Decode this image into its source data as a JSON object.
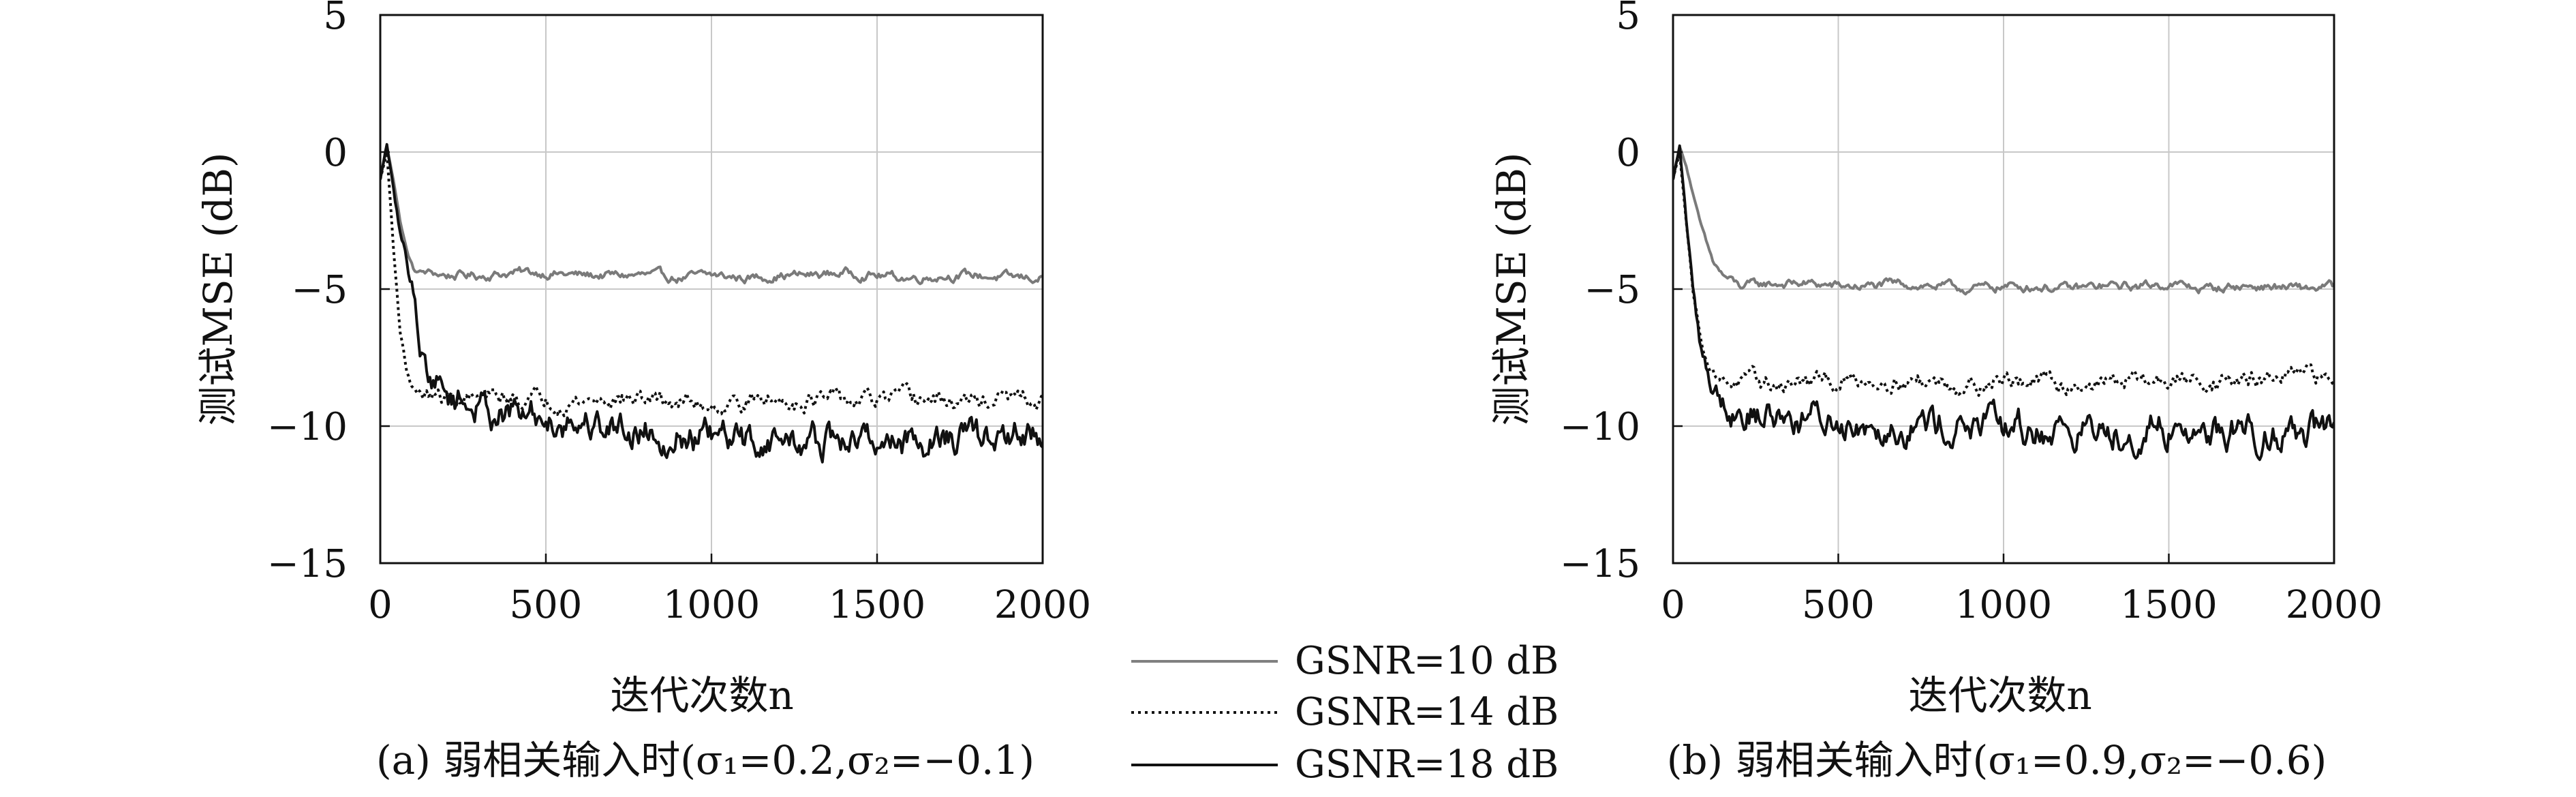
{
  "chart_data": [
    {
      "type": "line",
      "caption": "(a) 弱相关输入时(σ₁=0.2,σ₂=−0.1)",
      "xlabel": "迭代次数n",
      "ylabel": "测试MSE (dB)",
      "xlim": [
        0,
        2000
      ],
      "ylim": [
        -15,
        5
      ],
      "xticks": [
        "0",
        "500",
        "1000",
        "1500",
        "2000"
      ],
      "yticks": [
        "5",
        "0",
        "−5",
        "−10",
        "−15"
      ],
      "grid": true,
      "series": [
        {
          "name": "GSNR=10 dB",
          "style": "solid-gray",
          "x": [
            0,
            20,
            40,
            60,
            80,
            100,
            120,
            150,
            200,
            300,
            400,
            500,
            600,
            700,
            800,
            900,
            1000,
            1100,
            1200,
            1300,
            1400,
            1500,
            1600,
            1700,
            1800,
            1900,
            2000
          ],
          "y": [
            -1.0,
            0.2,
            -1.0,
            -2.5,
            -3.6,
            -4.3,
            -4.4,
            -4.4,
            -4.5,
            -4.5,
            -4.4,
            -4.4,
            -4.5,
            -4.5,
            -4.5,
            -4.6,
            -4.5,
            -4.6,
            -4.5,
            -4.5,
            -4.4,
            -4.5,
            -4.6,
            -4.5,
            -4.5,
            -4.6,
            -4.6
          ]
        },
        {
          "name": "GSNR=14 dB",
          "style": "dotted-black",
          "x": [
            0,
            20,
            40,
            60,
            80,
            100,
            120,
            150,
            200,
            300,
            400,
            500,
            600,
            700,
            800,
            900,
            1000,
            1100,
            1200,
            1300,
            1400,
            1500,
            1600,
            1700,
            1800,
            1900,
            2000
          ],
          "y": [
            -1.0,
            0.0,
            -3.5,
            -6.5,
            -8.0,
            -8.6,
            -8.8,
            -8.9,
            -9.0,
            -9.0,
            -9.0,
            -9.0,
            -9.1,
            -9.0,
            -9.0,
            -9.1,
            -9.2,
            -9.1,
            -9.1,
            -9.0,
            -9.1,
            -9.1,
            -9.0,
            -9.1,
            -9.1,
            -9.0,
            -9.2
          ]
        },
        {
          "name": "GSNR=18 dB",
          "style": "solid-black",
          "x": [
            0,
            20,
            40,
            60,
            80,
            100,
            120,
            150,
            200,
            300,
            400,
            500,
            600,
            700,
            800,
            900,
            1000,
            1100,
            1200,
            1300,
            1400,
            1500,
            1600,
            1700,
            1800,
            1900,
            2000
          ],
          "y": [
            -1.0,
            0.3,
            -1.5,
            -3.0,
            -4.0,
            -5.0,
            -7.0,
            -8.2,
            -8.8,
            -9.3,
            -9.6,
            -9.7,
            -9.8,
            -10.0,
            -10.1,
            -10.3,
            -10.5,
            -10.6,
            -10.5,
            -10.6,
            -10.6,
            -10.5,
            -10.5,
            -10.4,
            -10.5,
            -10.4,
            -10.4
          ]
        }
      ]
    },
    {
      "type": "line",
      "caption": "(b) 弱相关输入时(σ₁=0.9,σ₂=−0.6)",
      "xlabel": "迭代次数n",
      "ylabel": "测试MSE (dB)",
      "xlim": [
        0,
        2000
      ],
      "ylim": [
        -15,
        5
      ],
      "xticks": [
        "0",
        "500",
        "1000",
        "1500",
        "2000"
      ],
      "yticks": [
        "5",
        "0",
        "−5",
        "−10",
        "−15"
      ],
      "grid": true,
      "series": [
        {
          "name": "GSNR=10 dB",
          "style": "solid-gray",
          "x": [
            0,
            20,
            40,
            60,
            80,
            100,
            120,
            150,
            200,
            300,
            400,
            500,
            600,
            700,
            800,
            900,
            1000,
            1100,
            1200,
            1300,
            1400,
            1500,
            1600,
            1700,
            1800,
            1900,
            2000
          ],
          "y": [
            -1.0,
            0.2,
            -0.5,
            -1.5,
            -2.5,
            -3.3,
            -4.0,
            -4.5,
            -4.9,
            -4.8,
            -4.8,
            -4.9,
            -4.9,
            -4.8,
            -4.9,
            -5.0,
            -4.9,
            -4.9,
            -5.0,
            -4.9,
            -4.9,
            -4.8,
            -5.0,
            -4.9,
            -4.9,
            -5.0,
            -4.9
          ]
        },
        {
          "name": "GSNR=14 dB",
          "style": "dotted-black",
          "x": [
            0,
            20,
            40,
            60,
            80,
            100,
            120,
            150,
            200,
            300,
            400,
            500,
            600,
            700,
            800,
            900,
            1000,
            1100,
            1200,
            1300,
            1400,
            1500,
            1600,
            1700,
            1800,
            1900,
            2000
          ],
          "y": [
            -1.0,
            0.0,
            -2.5,
            -5.0,
            -6.5,
            -7.5,
            -8.0,
            -8.3,
            -8.4,
            -8.5,
            -8.4,
            -8.4,
            -8.3,
            -8.3,
            -8.4,
            -8.5,
            -8.3,
            -8.4,
            -8.5,
            -8.4,
            -8.3,
            -8.4,
            -8.3,
            -8.4,
            -8.3,
            -8.2,
            -8.3
          ]
        },
        {
          "name": "GSNR=18 dB",
          "style": "solid-black",
          "x": [
            0,
            20,
            40,
            60,
            80,
            100,
            120,
            150,
            200,
            300,
            400,
            500,
            600,
            700,
            800,
            900,
            1000,
            1100,
            1200,
            1300,
            1400,
            1500,
            1600,
            1700,
            1800,
            1900,
            2000
          ],
          "y": [
            -1.0,
            0.2,
            -2.5,
            -5.0,
            -6.8,
            -7.8,
            -8.5,
            -9.0,
            -9.4,
            -9.6,
            -9.7,
            -9.8,
            -9.8,
            -9.9,
            -9.9,
            -10.0,
            -10.1,
            -10.2,
            -10.1,
            -10.2,
            -10.1,
            -10.1,
            -10.2,
            -10.1,
            -10.2,
            -10.1,
            -10.2
          ]
        }
      ]
    }
  ],
  "legend": {
    "placement": "bottom-center",
    "entries": [
      {
        "label": "GSNR=10 dB",
        "color": "#808080",
        "dash": "solid"
      },
      {
        "label": "GSNR=14 dB",
        "color": "#111111",
        "dash": "dotted"
      },
      {
        "label": "GSNR=18 dB",
        "color": "#111111",
        "dash": "solid"
      }
    ]
  },
  "colors": {
    "grid": "#c8c8c8",
    "gray_line": "#7a7a7a",
    "black_line": "#111111"
  }
}
